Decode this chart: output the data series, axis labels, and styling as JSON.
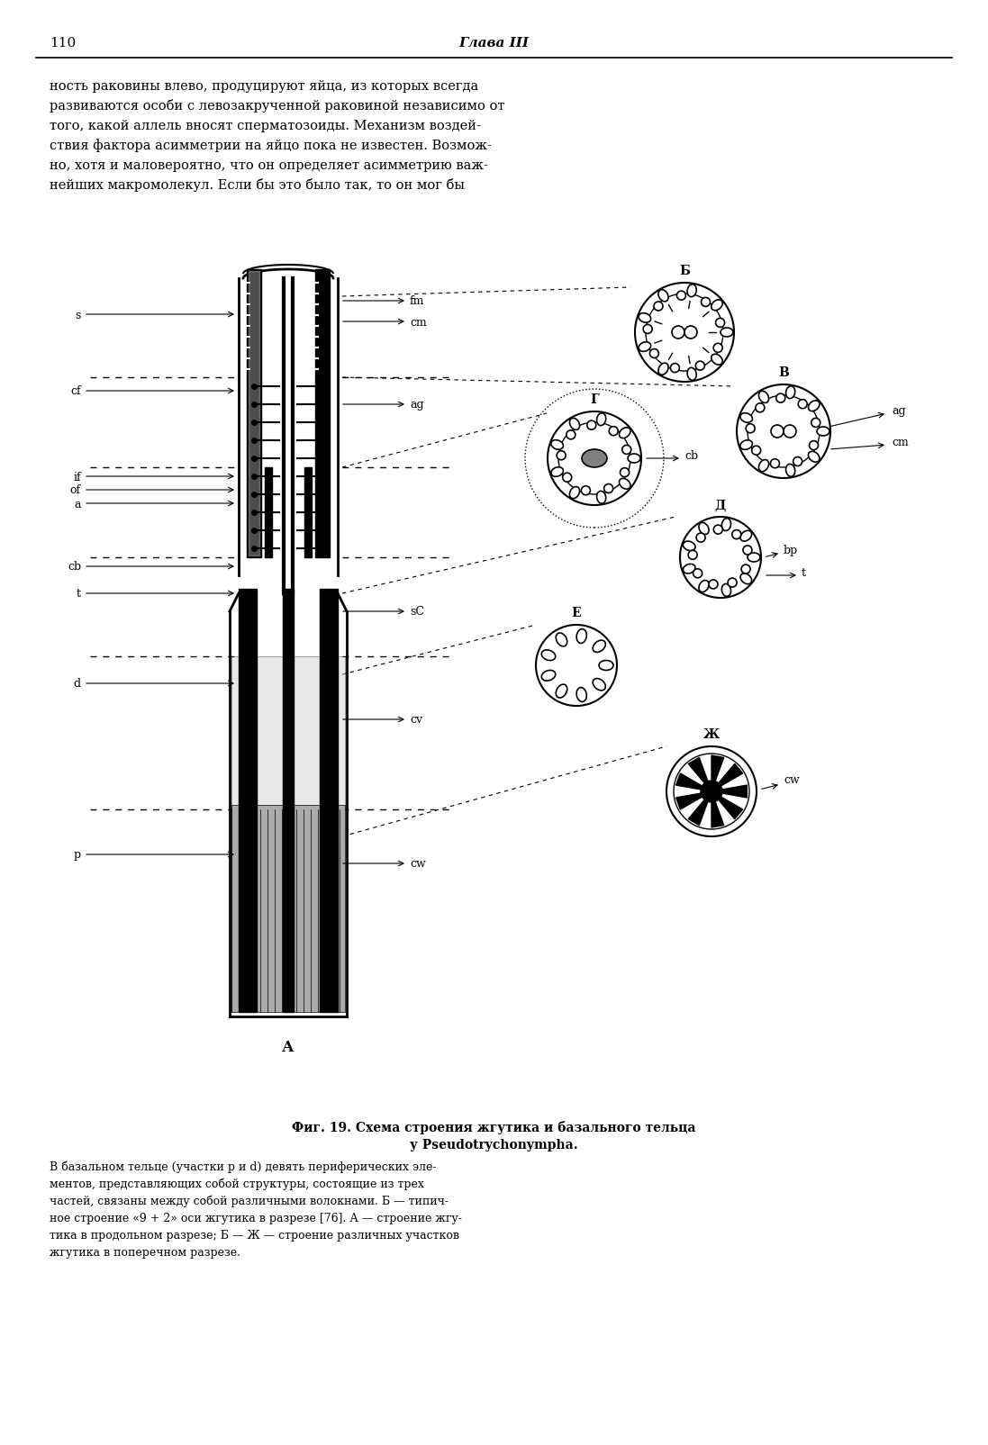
{
  "page_width": 10.97,
  "page_height": 16.06,
  "bg_color": "#ffffff",
  "header_text": "110",
  "header_chapter": "Глава III",
  "top_paragraph": "ность раковины влево, продуцируют яйца, из которых всегда\nразвиваются особи с левозакрученной раковиной независимо от\nтого, какой аллель вносят сперматозоиды. Механизм воздей-\nствия фактора асимметрии на яйцо пока не известен. Возмож-\nно, хотя и маловероятно, что он определяет асимметрию важ-\nнейших макромолекул. Если бы это было так, то он мог бы",
  "fig_caption_bold": "Фиг. 19. Схема строения жгутика и базального тельца\nу Pseudotrychonympha.",
  "fig_caption_text": "В базальном тельце (участки p и d) девять периферических эле-\nментов, представляющих собой структуры, состоящие из трех\nчастей, связаны между собой различными волокнами. Б — типич-\nное строение «9 + 2» оси жгутика в разрезе [76]. А — строение жгу-\nтика в продольном разрезе; Б — Ж — строение различных участков\nжгутика в поперечном разрезе.",
  "font_size_body": 10.5,
  "font_size_caption": 9.5,
  "font_size_header": 11
}
